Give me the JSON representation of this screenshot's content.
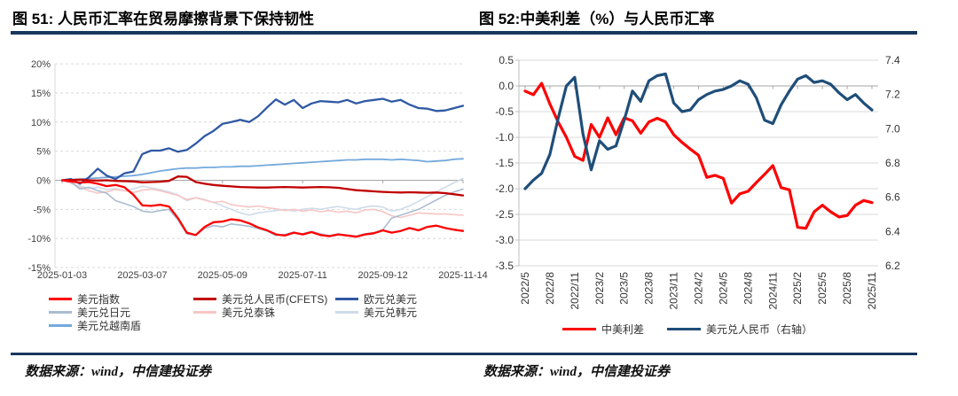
{
  "titles": {
    "fig51": "图 51: 人民币汇率在贸易摩擦背景下保持韧性",
    "fig52": "图 52:中美利差（%）与人民币汇率"
  },
  "sources": {
    "fig51": "数据来源：wind，中信建投证券",
    "fig52": "数据来源：wind，中信建投证券"
  },
  "accent_color": "#17375E",
  "chart_data": [
    {
      "type": "line",
      "title": "人民币汇率在贸易摩擦背景下保持韧性",
      "x_unit": "week",
      "n_points": 46,
      "x_tick_labels": [
        "2025-01-03",
        "2025-03-07",
        "2025-05-09",
        "2025-07-11",
        "2025-09-12",
        "2025-11-14"
      ],
      "x_tick_indices": [
        0,
        9,
        18,
        27,
        36,
        45
      ],
      "ylim": [
        -15,
        20
      ],
      "y_tick_labels": [
        "20%",
        "15%",
        "10%",
        "5%",
        "0%",
        "-5%",
        "-10%",
        "-15%"
      ],
      "y_tick_values": [
        20,
        15,
        10,
        5,
        0,
        -5,
        -10,
        -15
      ],
      "grid": "dashed",
      "legend_position": "bottom",
      "draw_order": [
        5,
        4,
        3,
        6,
        2,
        1,
        0
      ],
      "series": [
        {
          "name": "美元指数",
          "color": "#FE0000",
          "width": 2.3,
          "values": [
            0,
            -0.2,
            -0.4,
            -0.3,
            -0.6,
            -1.0,
            -0.8,
            -1.2,
            -2.5,
            -4.3,
            -4.4,
            -4.2,
            -4.5,
            -6.5,
            -9.0,
            -9.4,
            -8.0,
            -7.2,
            -7.1,
            -6.7,
            -6.9,
            -7.4,
            -8.1,
            -8.6,
            -9.3,
            -9.5,
            -9.0,
            -9.3,
            -8.9,
            -9.4,
            -9.6,
            -9.3,
            -9.5,
            -9.7,
            -9.3,
            -9.1,
            -8.6,
            -9.0,
            -8.7,
            -8.2,
            -8.6,
            -8.0,
            -7.8,
            -8.2,
            -8.5,
            -8.7
          ]
        },
        {
          "name": "美元兑人民币(CFETS)",
          "color": "#C00000",
          "width": 2.3,
          "values": [
            0,
            0.05,
            0.1,
            0,
            -0.05,
            0,
            -0.1,
            -0.15,
            -0.2,
            -0.35,
            -0.3,
            -0.25,
            -0.1,
            0.65,
            0.6,
            -0.3,
            -0.6,
            -0.8,
            -0.95,
            -1.05,
            -1.15,
            -1.2,
            -1.25,
            -1.25,
            -1.2,
            -1.15,
            -1.2,
            -1.25,
            -1.2,
            -1.15,
            -1.2,
            -1.3,
            -1.5,
            -1.7,
            -1.8,
            -1.9,
            -2.0,
            -2.05,
            -2.1,
            -2.05,
            -2.1,
            -2.15,
            -2.1,
            -2.2,
            -2.4,
            -2.6
          ]
        },
        {
          "name": "欧元兑美元",
          "color": "#3059A4",
          "width": 2.3,
          "values": [
            0,
            0.2,
            -0.6,
            0.5,
            2.0,
            0.8,
            0.2,
            1.2,
            1.5,
            4.5,
            5.1,
            5.1,
            5.5,
            4.9,
            5.2,
            6.3,
            7.6,
            8.5,
            9.7,
            10.0,
            10.4,
            10.0,
            11.0,
            12.5,
            13.9,
            13.0,
            13.8,
            12.4,
            13.2,
            13.6,
            13.5,
            13.4,
            13.8,
            13.2,
            13.6,
            13.8,
            14.0,
            13.5,
            13.8,
            13.0,
            12.4,
            12.3,
            11.9,
            12.0,
            12.4,
            12.8
          ]
        },
        {
          "name": "美元兑日元",
          "color": "#A9BCD1",
          "width": 1.6,
          "values": [
            0,
            -0.3,
            -1.5,
            -1.2,
            -1.8,
            -2.2,
            -3.5,
            -4.0,
            -4.5,
            -5.3,
            -5.5,
            -5.2,
            -5.0,
            -6.8,
            -9.2,
            -9.5,
            -8.3,
            -7.8,
            -8.0,
            -7.5,
            -7.7,
            -7.9,
            -8.3,
            -8.7,
            -9.5,
            -9.3,
            -8.9,
            -9.2,
            -8.8,
            -9.2,
            -9.5,
            -9.2,
            -9.4,
            -9.6,
            -9.2,
            -9.0,
            -8.5,
            -6.5,
            -6.0,
            -5.5,
            -5.0,
            -4.2,
            -3.4,
            -2.6,
            -2.0,
            -1.5
          ]
        },
        {
          "name": "美元兑泰铢",
          "color": "#F6C6C4",
          "width": 1.6,
          "values": [
            0,
            -0.5,
            -1.2,
            -1.8,
            -2.2,
            -2.0,
            -1.6,
            -1.8,
            -2.1,
            -1.7,
            -1.5,
            -1.8,
            -2.2,
            -2.6,
            -3.3,
            -3.0,
            -3.4,
            -3.8,
            -3.6,
            -4.2,
            -4.4,
            -4.6,
            -4.4,
            -4.7,
            -4.9,
            -5.2,
            -5.0,
            -5.3,
            -5.1,
            -5.4,
            -5.2,
            -5.5,
            -5.3,
            -5.6,
            -5.1,
            -5.0,
            -5.4,
            -6.1,
            -6.4,
            -6.0,
            -5.6,
            -5.7,
            -5.8,
            -5.8,
            -5.9,
            -6.0
          ]
        },
        {
          "name": "美元兑韩元",
          "color": "#CEDCEA",
          "width": 1.6,
          "values": [
            0,
            -0.5,
            -1.0,
            -1.4,
            -1.2,
            -1.6,
            -1.4,
            -1.8,
            -1.5,
            -1.0,
            -1.3,
            -1.6,
            -2.0,
            -2.5,
            -3.5,
            -3.0,
            -3.3,
            -3.8,
            -4.4,
            -5.0,
            -5.6,
            -6.0,
            -5.6,
            -5.4,
            -5.2,
            -5.0,
            -5.3,
            -5.0,
            -4.8,
            -5.0,
            -4.7,
            -4.5,
            -4.8,
            -5.0,
            -4.6,
            -4.4,
            -4.6,
            -5.3,
            -5.0,
            -4.4,
            -3.6,
            -2.8,
            -2.0,
            -1.2,
            -0.4,
            0.3
          ]
        },
        {
          "name": "美元兑越南盾",
          "color": "#74A9DC",
          "width": 1.8,
          "values": [
            0,
            0.1,
            0.2,
            0.3,
            0.4,
            0.5,
            0.6,
            0.7,
            0.8,
            1.0,
            1.3,
            1.6,
            1.8,
            2.0,
            2.1,
            2.1,
            2.2,
            2.2,
            2.3,
            2.3,
            2.4,
            2.4,
            2.5,
            2.6,
            2.7,
            2.8,
            2.9,
            3.0,
            3.1,
            3.2,
            3.3,
            3.4,
            3.5,
            3.5,
            3.6,
            3.6,
            3.6,
            3.5,
            3.6,
            3.5,
            3.4,
            3.2,
            3.3,
            3.4,
            3.6,
            3.7
          ]
        }
      ]
    },
    {
      "type": "line",
      "title": "中美利差（%）与人民币汇率",
      "x_unit": "month",
      "n_points": 43,
      "x_tick_labels": [
        "2022/5",
        "2022/8",
        "2022/11",
        "2023/2",
        "2023/5",
        "2023/8",
        "2023/11",
        "2024/2",
        "2024/5",
        "2024/8",
        "2024/11",
        "2025/2",
        "2025/5",
        "2025/8",
        "2025/11"
      ],
      "x_tick_indices": [
        0,
        3,
        6,
        9,
        12,
        15,
        18,
        21,
        24,
        27,
        30,
        33,
        36,
        39,
        42
      ],
      "left_axis": {
        "lim": [
          -3.5,
          0.5
        ],
        "tick_labels": [
          "0.5",
          "0.0",
          "-0.5",
          "-1.0",
          "-1.5",
          "-2.0",
          "-2.5",
          "-3.0",
          "-3.5"
        ],
        "tick_values": [
          0.5,
          0,
          -0.5,
          -1.0,
          -1.5,
          -2.0,
          -2.5,
          -3.0,
          -3.5
        ]
      },
      "right_axis": {
        "lim": [
          6.2,
          7.4
        ],
        "tick_labels": [
          "7.4",
          "7.2",
          "7.0",
          "6.8",
          "6.6",
          "6.4",
          "6.2"
        ],
        "tick_values": [
          7.4,
          7.2,
          7.0,
          6.8,
          6.6,
          6.4,
          6.2
        ]
      },
      "grid": "solid",
      "legend_position": "bottom",
      "draw_order": [
        0,
        1
      ],
      "series": [
        {
          "name": "中美利差",
          "color": "#FE0000",
          "axis": "left",
          "width": 3.2,
          "values": [
            -0.1,
            -0.17,
            0.05,
            -0.35,
            -0.7,
            -1.0,
            -1.37,
            -1.45,
            -0.75,
            -1.0,
            -0.62,
            -0.95,
            -0.62,
            -0.68,
            -0.92,
            -0.7,
            -0.63,
            -0.7,
            -0.95,
            -1.1,
            -1.23,
            -1.35,
            -1.78,
            -1.74,
            -1.8,
            -2.28,
            -2.1,
            -2.05,
            -1.88,
            -1.72,
            -1.55,
            -1.98,
            -2.02,
            -2.75,
            -2.77,
            -2.45,
            -2.32,
            -2.45,
            -2.55,
            -2.52,
            -2.32,
            -2.23,
            -2.27
          ]
        },
        {
          "name": "美元兑人民币（右轴）",
          "color": "#1F4E79",
          "axis": "right",
          "width": 3.2,
          "values": [
            6.65,
            6.7,
            6.74,
            6.85,
            7.06,
            7.25,
            7.3,
            6.97,
            6.76,
            6.93,
            6.88,
            6.9,
            7.05,
            7.22,
            7.16,
            7.28,
            7.31,
            7.32,
            7.15,
            7.1,
            7.11,
            7.17,
            7.2,
            7.22,
            7.23,
            7.25,
            7.28,
            7.26,
            7.18,
            7.05,
            7.03,
            7.14,
            7.22,
            7.29,
            7.31,
            7.27,
            7.28,
            7.26,
            7.21,
            7.17,
            7.2,
            7.15,
            7.11
          ]
        }
      ]
    }
  ]
}
